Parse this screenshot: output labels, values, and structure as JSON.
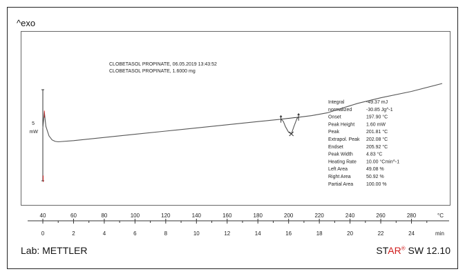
{
  "header": {
    "exo_label": "^exo"
  },
  "sample": {
    "line1": "CLOBETASOL PROPINATE, 06.05.2019 13:43:52",
    "line2": "CLOBETASOL PROPINATE, 1.6000 mg"
  },
  "scale_label": {
    "value": "5",
    "unit": "mW"
  },
  "results": [
    {
      "label": "Integral",
      "value": "-49.37 mJ"
    },
    {
      "label": "  normalized",
      "value": "-30.85 Jg^-1"
    },
    {
      "label": "Onset",
      "value": "197.90 °C"
    },
    {
      "label": "Peak Height",
      "value": "1.60 mW"
    },
    {
      "label": "Peak",
      "value": "201.81 °C"
    },
    {
      "label": "Extrapol. Peak",
      "value": "202.08 °C"
    },
    {
      "label": "Endset",
      "value": "205.92 °C"
    },
    {
      "label": "Peak Width",
      "value": "4.83 °C"
    },
    {
      "label": "Heating Rate",
      "value": "10.00 °Cmin^-1"
    },
    {
      "label": "Left Area",
      "value": "49.08 %"
    },
    {
      "label": "Right Area",
      "value": "50.92 %"
    },
    {
      "label": "Partial Area",
      "value": "100.00 %"
    }
  ],
  "footer": {
    "lab": "Lab: METTLER",
    "star_prefix": "ST",
    "star_accent": "AR",
    "reg": "®",
    "version": " SW 12.10"
  },
  "colors": {
    "curve": "#555555",
    "accent": "#d01c1c",
    "axis": "#333333"
  },
  "chart_data": {
    "type": "line",
    "xlabel": "°C",
    "x2label": "min",
    "x_range": [
      40,
      300
    ],
    "x_ticks": [
      40,
      60,
      80,
      100,
      120,
      140,
      160,
      180,
      200,
      220,
      240,
      260,
      280
    ],
    "x2_ticks": [
      0,
      2,
      4,
      6,
      8,
      10,
      12,
      14,
      16,
      18,
      20,
      22,
      24
    ],
    "series": [
      {
        "x": [
          40,
          41,
          42,
          44,
          46,
          48,
          50,
          60,
          80,
          100,
          120,
          140,
          160,
          180,
          190,
          195,
          196.5,
          198,
          200,
          201.8,
          203.5,
          205.5,
          206.5,
          215,
          225,
          235,
          245,
          260,
          280,
          300
        ],
        "y": [
          0.4,
          2.4,
          0.6,
          -0.6,
          -1.1,
          -1.3,
          -1.35,
          -1.2,
          -0.8,
          -0.4,
          0.0,
          0.4,
          0.8,
          1.2,
          1.4,
          1.5,
          1.25,
          0.55,
          -0.15,
          -0.35,
          0.6,
          1.6,
          1.75,
          1.95,
          2.3,
          2.9,
          3.5,
          4.2,
          5.0,
          6.0
        ]
      }
    ],
    "integration_baseline": {
      "x": [
        195,
        206.5
      ],
      "y": [
        1.5,
        1.75
      ]
    }
  }
}
